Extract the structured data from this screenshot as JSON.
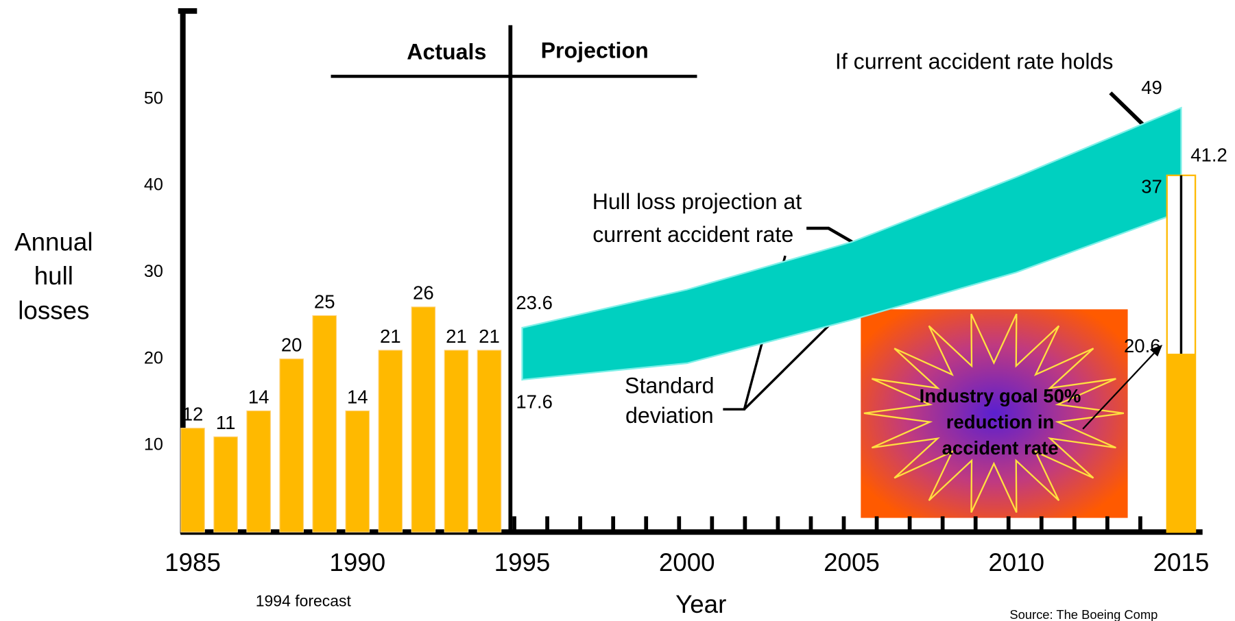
{
  "chart_data": {
    "type": "bar",
    "y_label": [
      "Annual",
      "hull",
      "losses"
    ],
    "x_label": "Year",
    "xlim": [
      1984.7,
      2015.65
    ],
    "xticks": [
      1985,
      1990,
      1995,
      2000,
      2005,
      2010,
      2015
    ],
    "ylim": [
      0,
      60
    ],
    "yticks": [
      10,
      20,
      30,
      40,
      50
    ],
    "bars": {
      "x": [
        1985,
        1986,
        1987,
        1988,
        1989,
        1990,
        1991,
        1992,
        1993,
        1994
      ],
      "values": [
        12,
        11,
        14,
        20,
        25,
        14,
        21,
        26,
        21,
        21
      ],
      "color": "#ffb900"
    },
    "band": {
      "x": [
        1995,
        2000,
        2005,
        2010,
        2015
      ],
      "upper": [
        23.6,
        28,
        33.5,
        41,
        49
      ],
      "lower": [
        17.6,
        19.5,
        24.5,
        30,
        37
      ],
      "color": "#00d0c0"
    },
    "goal_bar": {
      "x": 2015,
      "value": 20.6,
      "target": 41.2,
      "color": "#ffb900"
    },
    "annotations": {
      "actuals": "Actuals",
      "projection": "Projection",
      "holds": "If current accident rate holds",
      "hull_projection": [
        "Hull loss projection at",
        "current accident rate"
      ],
      "std_dev": [
        "Standard",
        "deviation"
      ],
      "goal": [
        "Industry goal 50%",
        "reduction in",
        "accident rate"
      ],
      "forecast": "1994 forecast",
      "source": "Source: The Boeing Comp"
    }
  }
}
